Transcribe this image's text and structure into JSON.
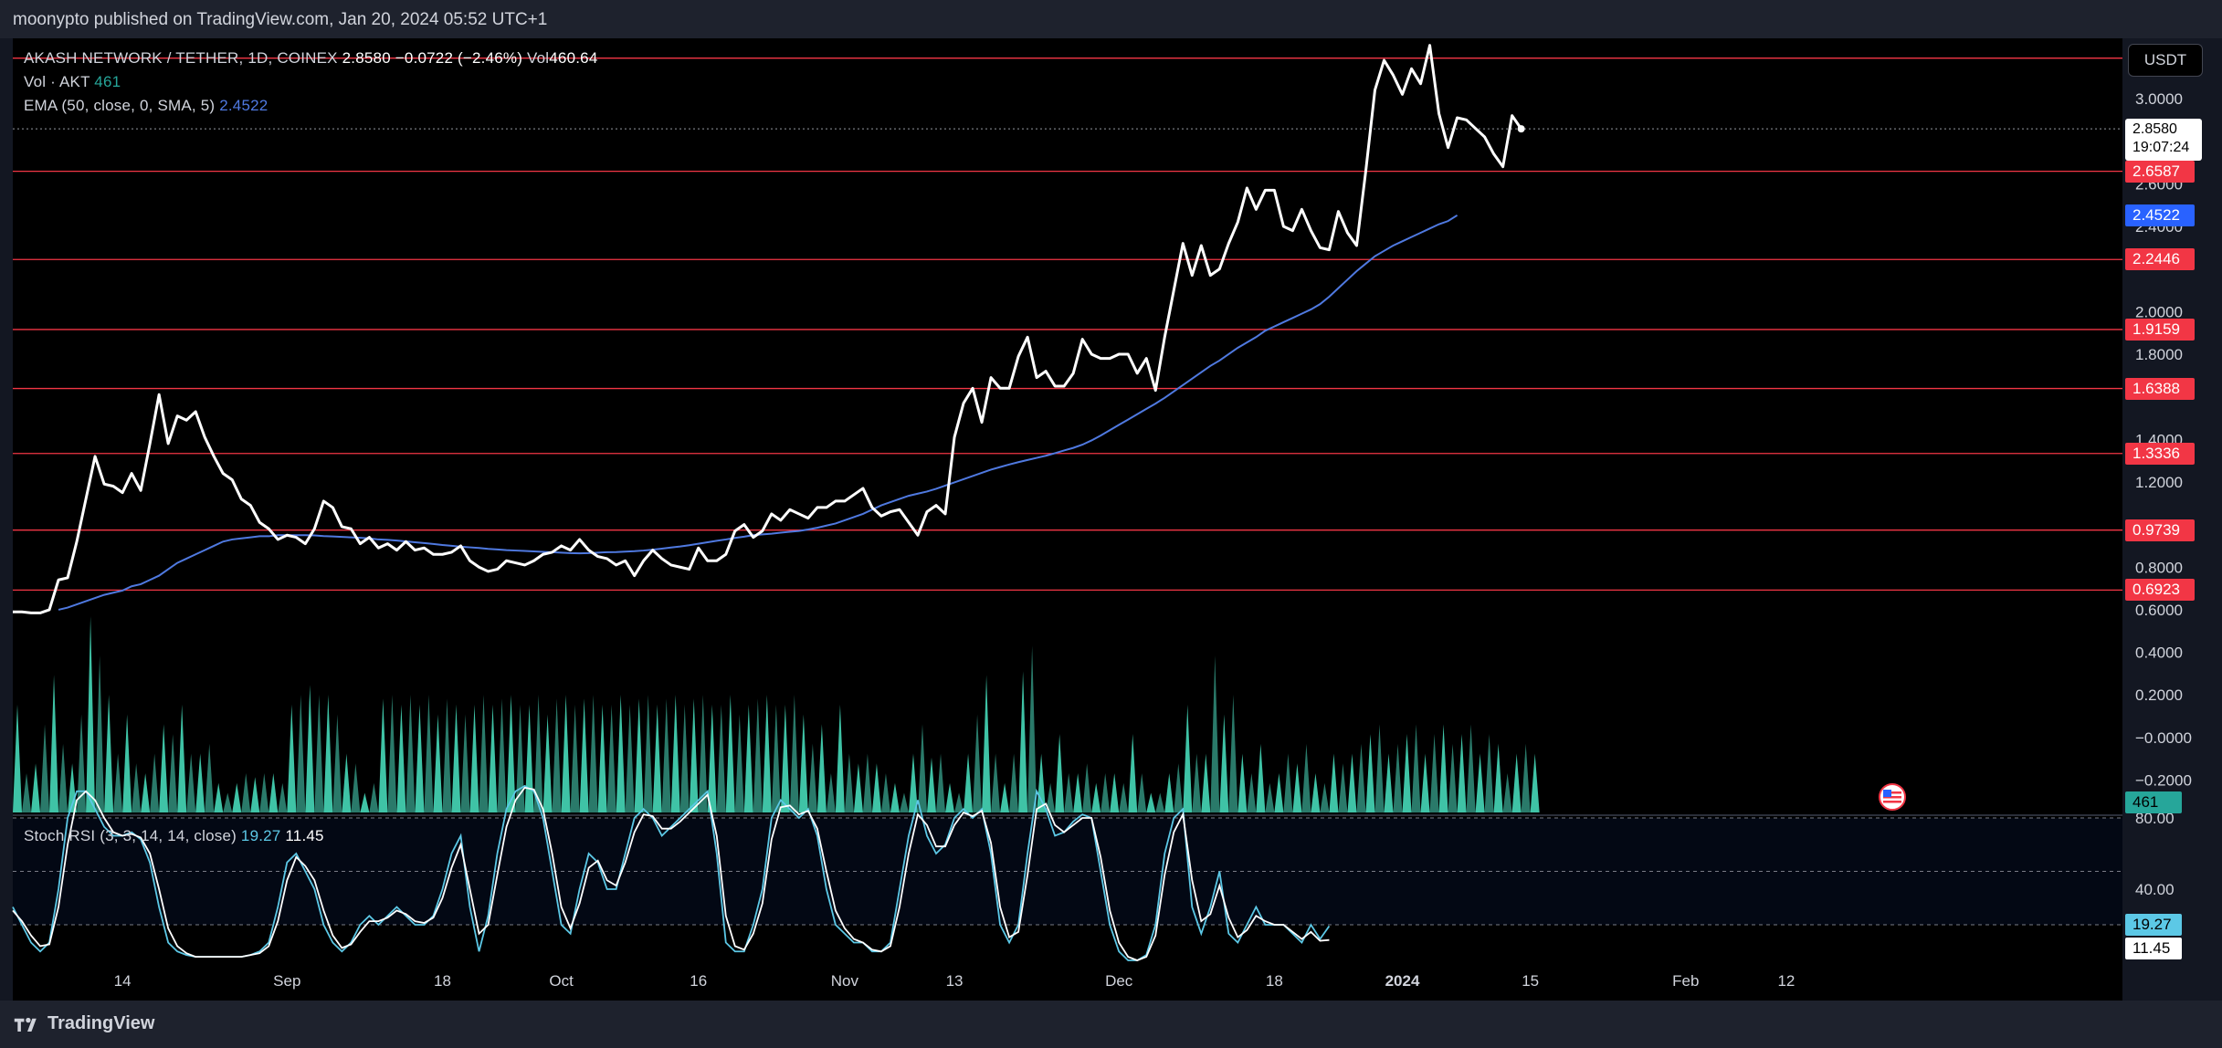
{
  "publisher": "moonypto published on TradingView.com, Jan 20, 2024 05:52 UTC+1",
  "brand": "TradingView",
  "legend": {
    "symbol": "AKASH NETWORK / TETHER, 1D, COINEX",
    "last": "2.8580",
    "change": "−0.0722 (−2.46%)",
    "vol_label": "Vol",
    "vol_value": "460.64",
    "vol_indicator": "Vol · AKT",
    "vol_indicator_value": "461",
    "ema_label": "EMA (50, close, 0, SMA, 5)",
    "ema_value": "2.4522",
    "rsi_label": "Stoch RSI (3, 3, 14, 14, close)",
    "rsi_k": "19.27",
    "rsi_d": "11.45"
  },
  "currency": "USDT",
  "price_tag": {
    "price": "2.8580",
    "countdown": "19:07:24"
  },
  "ema_tag": "2.4522",
  "volume_tag": "461",
  "rsi_tags": {
    "k": "19.27",
    "d": "11.45"
  },
  "colors": {
    "price": "#ffffff",
    "ema": "#4f79e0",
    "level": "#f23645",
    "volume": "#26a69a",
    "rsi_k": "#5cc8e6",
    "rsi_d": "#ffffff",
    "background": "#000000"
  },
  "chart_data": [
    {
      "type": "line",
      "title": "AKASH NETWORK / TETHER, 1D, COINEX",
      "ylabel": "USDT",
      "ylim": [
        -0.3,
        3.3
      ],
      "y_ticks": [
        "3.0000",
        "2.8000",
        "2.6000",
        "2.4000",
        "2.0000",
        "1.8000",
        "1.4000",
        "1.2000",
        "0.8000",
        "0.6000",
        "0.4000",
        "0.2000",
        "−0.0000",
        "−0.2000"
      ],
      "x_ticks": [
        {
          "label": "14",
          "day": 12
        },
        {
          "label": "Sep",
          "day": 30
        },
        {
          "label": "18",
          "day": 47
        },
        {
          "label": "Oct",
          "day": 60
        },
        {
          "label": "16",
          "day": 75
        },
        {
          "label": "Nov",
          "day": 91
        },
        {
          "label": "13",
          "day": 103
        },
        {
          "label": "Dec",
          "day": 121
        },
        {
          "label": "18",
          "day": 138
        },
        {
          "label": "2024",
          "day": 152
        },
        {
          "label": "15",
          "day": 166
        },
        {
          "label": "Feb",
          "day": 183
        },
        {
          "label": "12",
          "day": 194
        }
      ],
      "horizontal_levels": [
        "3.1900",
        "2.6587",
        "2.2446",
        "1.9159",
        "1.6388",
        "1.3336",
        "0.9739",
        "0.6923"
      ],
      "series": [
        {
          "name": "AKT/USDT close",
          "values": [
            0.59,
            0.59,
            0.585,
            0.585,
            0.6,
            0.74,
            0.75,
            0.92,
            1.12,
            1.32,
            1.19,
            1.18,
            1.15,
            1.24,
            1.16,
            1.38,
            1.61,
            1.38,
            1.51,
            1.49,
            1.53,
            1.41,
            1.32,
            1.24,
            1.21,
            1.12,
            1.09,
            1.01,
            0.98,
            0.93,
            0.95,
            0.94,
            0.91,
            0.98,
            1.11,
            1.08,
            0.99,
            0.98,
            0.91,
            0.94,
            0.89,
            0.91,
            0.88,
            0.92,
            0.88,
            0.89,
            0.86,
            0.86,
            0.87,
            0.9,
            0.83,
            0.8,
            0.78,
            0.79,
            0.83,
            0.82,
            0.81,
            0.83,
            0.86,
            0.87,
            0.9,
            0.88,
            0.93,
            0.88,
            0.85,
            0.84,
            0.81,
            0.83,
            0.76,
            0.83,
            0.88,
            0.84,
            0.81,
            0.8,
            0.79,
            0.89,
            0.83,
            0.83,
            0.86,
            0.97,
            1.0,
            0.94,
            0.97,
            1.05,
            1.02,
            1.07,
            1.05,
            1.03,
            1.08,
            1.08,
            1.11,
            1.11,
            1.14,
            1.17,
            1.08,
            1.04,
            1.06,
            1.07,
            1.01,
            0.95,
            1.06,
            1.09,
            1.05,
            1.41,
            1.57,
            1.64,
            1.48,
            1.69,
            1.64,
            1.64,
            1.79,
            1.88,
            1.69,
            1.72,
            1.65,
            1.65,
            1.71,
            1.87,
            1.8,
            1.78,
            1.78,
            1.8,
            1.8,
            1.71,
            1.78,
            1.63,
            1.88,
            2.1,
            2.32,
            2.17,
            2.31,
            2.17,
            2.2,
            2.32,
            2.42,
            2.58,
            2.48,
            2.57,
            2.57,
            2.4,
            2.38,
            2.48,
            2.38,
            2.3,
            2.29,
            2.47,
            2.37,
            2.31,
            2.66,
            3.04,
            3.18,
            3.11,
            3.02,
            3.14,
            3.07,
            3.25,
            2.93,
            2.77,
            2.91,
            2.9,
            2.86,
            2.82,
            2.74,
            2.68,
            2.92,
            2.858
          ]
        },
        {
          "name": "EMA 50",
          "start_day": 5,
          "values": [
            0.6,
            0.61,
            0.625,
            0.64,
            0.655,
            0.67,
            0.68,
            0.69,
            0.71,
            0.72,
            0.74,
            0.76,
            0.79,
            0.82,
            0.84,
            0.86,
            0.88,
            0.9,
            0.92,
            0.93,
            0.935,
            0.94,
            0.945,
            0.945,
            0.95,
            0.95,
            0.95,
            0.95,
            0.949,
            0.946,
            0.944,
            0.942,
            0.94,
            0.938,
            0.935,
            0.93,
            0.928,
            0.925,
            0.921,
            0.917,
            0.913,
            0.909,
            0.904,
            0.9,
            0.896,
            0.893,
            0.89,
            0.886,
            0.883,
            0.88,
            0.878,
            0.876,
            0.874,
            0.872,
            0.87,
            0.868,
            0.866,
            0.865,
            0.866,
            0.868,
            0.87,
            0.871,
            0.873,
            0.875,
            0.878,
            0.882,
            0.887,
            0.892,
            0.897,
            0.903,
            0.91,
            0.917,
            0.924,
            0.93,
            0.937,
            0.943,
            0.95,
            0.954,
            0.957,
            0.962,
            0.966,
            0.97,
            0.977,
            0.985,
            0.995,
            1.005,
            1.02,
            1.035,
            1.05,
            1.07,
            1.09,
            1.105,
            1.12,
            1.135,
            1.145,
            1.155,
            1.168,
            1.183,
            1.198,
            1.213,
            1.228,
            1.243,
            1.258,
            1.27,
            1.282,
            1.293,
            1.303,
            1.313,
            1.323,
            1.335,
            1.348,
            1.36,
            1.375,
            1.395,
            1.418,
            1.443,
            1.468,
            1.493,
            1.518,
            1.543,
            1.568,
            1.595,
            1.625,
            1.655,
            1.685,
            1.715,
            1.745,
            1.77,
            1.8,
            1.83,
            1.855,
            1.88,
            1.91,
            1.93,
            1.95,
            1.97,
            1.99,
            2.01,
            2.035,
            2.07,
            2.11,
            2.15,
            2.19,
            2.225,
            2.26,
            2.285,
            2.31,
            2.33,
            2.35,
            2.37,
            2.39,
            2.41,
            2.425,
            2.4522
          ]
        }
      ]
    },
    {
      "type": "area",
      "title": "Vol · AKT",
      "series": [
        {
          "name": "Volume",
          "values": [
            0.55,
            0.2,
            0.25,
            0.45,
            0.7,
            0.35,
            0.25,
            0.5,
            1.0,
            0.8,
            0.6,
            0.3,
            0.5,
            0.25,
            0.2,
            0.3,
            0.45,
            0.4,
            0.55,
            0.3,
            0.3,
            0.35,
            0.15,
            0.1,
            0.15,
            0.2,
            0.18,
            0.2,
            0.2,
            0.15,
            0.55,
            0.6,
            0.65,
            0.6,
            0.6,
            0.5,
            0.3,
            0.25,
            0.1,
            0.15,
            0.58,
            0.6,
            0.55,
            0.6,
            0.55,
            0.6,
            0.5,
            0.58,
            0.55,
            0.5,
            0.55,
            0.6,
            0.55,
            0.58,
            0.6,
            0.55,
            0.55,
            0.6,
            0.5,
            0.58,
            0.6,
            0.55,
            0.58,
            0.6,
            0.55,
            0.55,
            0.6,
            0.55,
            0.58,
            0.6,
            0.55,
            0.58,
            0.6,
            0.55,
            0.58,
            0.6,
            0.55,
            0.55,
            0.6,
            0.5,
            0.55,
            0.58,
            0.6,
            0.55,
            0.55,
            0.6,
            0.5,
            0.35,
            0.45,
            0.2,
            0.55,
            0.3,
            0.25,
            0.3,
            0.25,
            0.2,
            0.15,
            0.1,
            0.3,
            0.45,
            0.28,
            0.3,
            0.15,
            0.1,
            0.3,
            0.5,
            0.7,
            0.3,
            0.15,
            0.3,
            0.72,
            0.85,
            0.3,
            0.15,
            0.4,
            0.2,
            0.2,
            0.25,
            0.15,
            0.2,
            0.2,
            0.15,
            0.4,
            0.2,
            0.1,
            0.1,
            0.2,
            0.25,
            0.55,
            0.3,
            0.3,
            0.8,
            0.5,
            0.6,
            0.3,
            0.2,
            0.35,
            0.15,
            0.2,
            0.3,
            0.25,
            0.35,
            0.2,
            0.15,
            0.3,
            0.25,
            0.3,
            0.35,
            0.4,
            0.45,
            0.3,
            0.35,
            0.4,
            0.45,
            0.3,
            0.4,
            0.45,
            0.35,
            0.4,
            0.45,
            0.3,
            0.4,
            0.35,
            0.2,
            0.3,
            0.35,
            0.3
          ]
        }
      ]
    },
    {
      "type": "line",
      "title": "Stoch RSI (3, 3, 14, 14, close)",
      "ylim": [
        0,
        100
      ],
      "y_ticks": [
        "80.00",
        "40.00"
      ],
      "bands": [
        80,
        50,
        20
      ],
      "series": [
        {
          "name": "K",
          "values": [
            30,
            20,
            10,
            5,
            10,
            40,
            80,
            95,
            95,
            85,
            75,
            70,
            70,
            72,
            68,
            55,
            30,
            10,
            5,
            3,
            2,
            2,
            2,
            2,
            2,
            2,
            3,
            5,
            10,
            30,
            55,
            60,
            50,
            40,
            20,
            10,
            5,
            10,
            20,
            25,
            20,
            25,
            30,
            25,
            20,
            20,
            25,
            40,
            60,
            70,
            30,
            5,
            25,
            60,
            85,
            95,
            98,
            95,
            80,
            50,
            20,
            15,
            40,
            60,
            55,
            40,
            40,
            60,
            80,
            85,
            80,
            70,
            75,
            80,
            85,
            90,
            95,
            60,
            10,
            5,
            5,
            20,
            40,
            80,
            90,
            85,
            80,
            85,
            70,
            40,
            20,
            15,
            10,
            10,
            5,
            5,
            10,
            40,
            70,
            90,
            70,
            60,
            65,
            80,
            85,
            80,
            85,
            60,
            20,
            10,
            20,
            60,
            95,
            85,
            70,
            72,
            78,
            82,
            80,
            50,
            20,
            5,
            0,
            0,
            3,
            20,
            60,
            80,
            85,
            30,
            15,
            30,
            50,
            15,
            10,
            20,
            30,
            20,
            20,
            20,
            15,
            10,
            20,
            12,
            19.27
          ]
        },
        {
          "name": "D",
          "values": [
            28,
            22,
            14,
            8,
            9,
            30,
            65,
            90,
            95,
            90,
            80,
            72,
            70,
            71,
            69,
            60,
            40,
            18,
            8,
            4,
            2,
            2,
            2,
            2,
            2,
            2,
            3,
            4,
            8,
            22,
            45,
            58,
            53,
            45,
            28,
            14,
            7,
            9,
            16,
            22,
            22,
            24,
            28,
            26,
            22,
            21,
            24,
            35,
            52,
            65,
            40,
            15,
            20,
            48,
            75,
            90,
            97,
            96,
            85,
            60,
            30,
            18,
            32,
            52,
            56,
            45,
            42,
            55,
            72,
            82,
            81,
            74,
            74,
            78,
            83,
            88,
            93,
            70,
            25,
            8,
            6,
            15,
            32,
            68,
            86,
            87,
            82,
            84,
            74,
            50,
            28,
            18,
            12,
            10,
            6,
            5,
            8,
            30,
            60,
            82,
            76,
            64,
            64,
            76,
            83,
            81,
            84,
            66,
            30,
            13,
            16,
            48,
            85,
            88,
            76,
            72,
            76,
            80,
            80,
            58,
            28,
            10,
            2,
            0,
            2,
            14,
            48,
            72,
            82,
            45,
            22,
            26,
            42,
            24,
            13,
            17,
            25,
            22,
            20,
            20,
            16,
            12,
            16,
            11,
            11.45
          ]
        }
      ]
    }
  ]
}
